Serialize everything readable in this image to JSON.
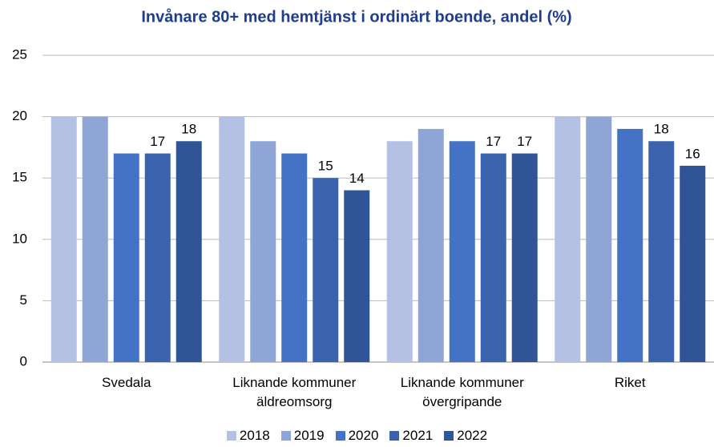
{
  "chart_data": {
    "type": "bar",
    "title": "Invånare 80+ med hemtjänst i ordinärt boende, andel (%)",
    "categories": [
      "Svedala",
      "Liknande kommuner äldreomsorg",
      "Liknande kommuner övergripande",
      "Riket"
    ],
    "series": [
      {
        "name": "2018",
        "color": "#b4c0e4",
        "values": [
          20,
          20,
          18,
          20
        ]
      },
      {
        "name": "2019",
        "color": "#8fa5d6",
        "values": [
          20,
          18,
          19,
          20
        ]
      },
      {
        "name": "2020",
        "color": "#4472c4",
        "values": [
          17,
          17,
          18,
          19
        ]
      },
      {
        "name": "2021",
        "color": "#3a62ad",
        "values": [
          17,
          15,
          17,
          18
        ],
        "data_labels": true
      },
      {
        "name": "2022",
        "color": "#2f5597",
        "values": [
          18,
          14,
          17,
          16
        ],
        "data_labels": true
      }
    ],
    "ylim": [
      0,
      25
    ],
    "yticks": [
      0,
      5,
      10,
      15,
      20,
      25
    ],
    "grid": true,
    "legend": "bottom"
  }
}
